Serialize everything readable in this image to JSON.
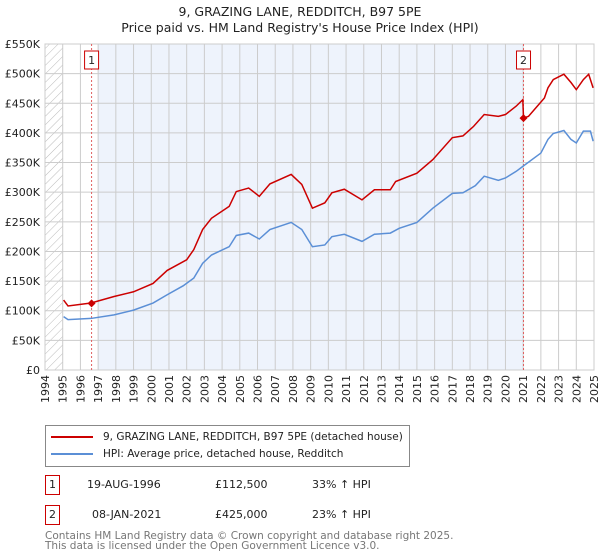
{
  "title": "9, GRAZING LANE, REDDITCH, B97 5PE",
  "subtitle": "Price paid vs. HM Land Registry's House Price Index (HPI)",
  "colors": {
    "price": "#cc0000",
    "hpi": "#5b8fd6",
    "shade": "#eef3fc"
  },
  "chart_data": {
    "type": "line",
    "title": "9, GRAZING LANE, REDDITCH, B97 5PE",
    "xlim": [
      1994,
      2025
    ],
    "ylim": [
      0,
      550000
    ],
    "y_ticks": [
      {
        "v": 0,
        "l": "£0"
      },
      {
        "v": 50000,
        "l": "£50K"
      },
      {
        "v": 100000,
        "l": "£100K"
      },
      {
        "v": 150000,
        "l": "£150K"
      },
      {
        "v": 200000,
        "l": "£200K"
      },
      {
        "v": 250000,
        "l": "£250K"
      },
      {
        "v": 300000,
        "l": "£300K"
      },
      {
        "v": 350000,
        "l": "£350K"
      },
      {
        "v": 400000,
        "l": "£400K"
      },
      {
        "v": 450000,
        "l": "£450K"
      },
      {
        "v": 500000,
        "l": "£500K"
      },
      {
        "v": 550000,
        "l": "£550K"
      }
    ],
    "x_ticks": [
      "1994",
      "1995",
      "1996",
      "1997",
      "1998",
      "1999",
      "2000",
      "2001",
      "2002",
      "2003",
      "2004",
      "2005",
      "2006",
      "2007",
      "2008",
      "2009",
      "2010",
      "2011",
      "2012",
      "2013",
      "2014",
      "2015",
      "2016",
      "2017",
      "2018",
      "2019",
      "2020",
      "2021",
      "2022",
      "2023",
      "2024",
      "2025"
    ],
    "grid": true,
    "shaded_range": [
      1997,
      2021.02
    ],
    "series": [
      {
        "name": "9, GRAZING LANE, REDDITCH, B97 5PE (detached house)",
        "color": "#cc0000",
        "points": [
          [
            1995.05,
            118000
          ],
          [
            1995.3,
            108000
          ],
          [
            1996.6,
            113000
          ],
          [
            1997.9,
            124000
          ],
          [
            1999,
            132000
          ],
          [
            2000.1,
            146000
          ],
          [
            2000.9,
            168000
          ],
          [
            2002,
            186000
          ],
          [
            2002.4,
            203000
          ],
          [
            2002.9,
            237000
          ],
          [
            2003.4,
            256000
          ],
          [
            2004.4,
            276000
          ],
          [
            2004.8,
            301000
          ],
          [
            2005.5,
            307000
          ],
          [
            2006.1,
            293000
          ],
          [
            2006.7,
            314000
          ],
          [
            2007.9,
            330000
          ],
          [
            2008.5,
            313000
          ],
          [
            2009.1,
            273000
          ],
          [
            2009.8,
            282000
          ],
          [
            2010.2,
            299000
          ],
          [
            2010.9,
            305000
          ],
          [
            2011.9,
            287000
          ],
          [
            2012.6,
            304000
          ],
          [
            2013.5,
            304000
          ],
          [
            2013.8,
            318000
          ],
          [
            2015,
            332000
          ],
          [
            2015.9,
            355000
          ],
          [
            2017,
            392000
          ],
          [
            2017.6,
            395000
          ],
          [
            2018.2,
            411000
          ],
          [
            2018.8,
            431000
          ],
          [
            2019.6,
            428000
          ],
          [
            2020,
            431000
          ],
          [
            2020.6,
            445000
          ],
          [
            2020.98,
            456000
          ],
          [
            2021.02,
            425000
          ],
          [
            2021.3,
            428000
          ],
          [
            2022.2,
            459000
          ],
          [
            2022.4,
            476000
          ],
          [
            2022.7,
            490000
          ],
          [
            2023.3,
            499000
          ],
          [
            2023.7,
            485000
          ],
          [
            2024,
            473000
          ],
          [
            2024.4,
            490000
          ],
          [
            2024.7,
            499000
          ],
          [
            2024.95,
            476000
          ]
        ]
      },
      {
        "name": "HPI: Average price, detached house, Redditch",
        "color": "#5b8fd6",
        "points": [
          [
            1995.05,
            90000
          ],
          [
            1995.3,
            85000
          ],
          [
            1996.6,
            87000
          ],
          [
            1997.9,
            93000
          ],
          [
            1999,
            101000
          ],
          [
            2000.1,
            113000
          ],
          [
            2000.9,
            127000
          ],
          [
            2001.8,
            142000
          ],
          [
            2002.4,
            155000
          ],
          [
            2002.9,
            180000
          ],
          [
            2003.4,
            194000
          ],
          [
            2004.4,
            208000
          ],
          [
            2004.8,
            227000
          ],
          [
            2005.5,
            231000
          ],
          [
            2006.1,
            221000
          ],
          [
            2006.7,
            237000
          ],
          [
            2007.9,
            249000
          ],
          [
            2008.5,
            237000
          ],
          [
            2009.1,
            208000
          ],
          [
            2009.8,
            211000
          ],
          [
            2010.2,
            225000
          ],
          [
            2010.9,
            229000
          ],
          [
            2011.9,
            217000
          ],
          [
            2012.6,
            229000
          ],
          [
            2013.5,
            231000
          ],
          [
            2014,
            239000
          ],
          [
            2015,
            249000
          ],
          [
            2015.9,
            273000
          ],
          [
            2017,
            298000
          ],
          [
            2017.6,
            299000
          ],
          [
            2018.3,
            311000
          ],
          [
            2018.8,
            327000
          ],
          [
            2019.6,
            320000
          ],
          [
            2020,
            324000
          ],
          [
            2020.6,
            335000
          ],
          [
            2021,
            344000
          ],
          [
            2022,
            366000
          ],
          [
            2022.4,
            389000
          ],
          [
            2022.7,
            399000
          ],
          [
            2023.3,
            404000
          ],
          [
            2023.7,
            389000
          ],
          [
            2024,
            383000
          ],
          [
            2024.4,
            403000
          ],
          [
            2024.8,
            403000
          ],
          [
            2024.95,
            386000
          ]
        ]
      }
    ],
    "sales": [
      {
        "label": "1",
        "x": 1996.63,
        "y": 112500
      },
      {
        "label": "2",
        "x": 2021.02,
        "y": 425000
      }
    ]
  },
  "legend": {
    "price": "9, GRAZING LANE, REDDITCH, B97 5PE (detached house)",
    "hpi": "HPI: Average price, detached house, Redditch"
  },
  "transactions": [
    {
      "num": "1",
      "date": "19-AUG-1996",
      "price": "£112,500",
      "hpi": "33% ↑ HPI"
    },
    {
      "num": "2",
      "date": "08-JAN-2021",
      "price": "£425,000",
      "hpi": "23% ↑ HPI"
    }
  ],
  "footer": {
    "line1": "Contains HM Land Registry data © Crown copyright and database right 2025.",
    "line2": "This data is licensed under the Open Government Licence v3.0."
  }
}
